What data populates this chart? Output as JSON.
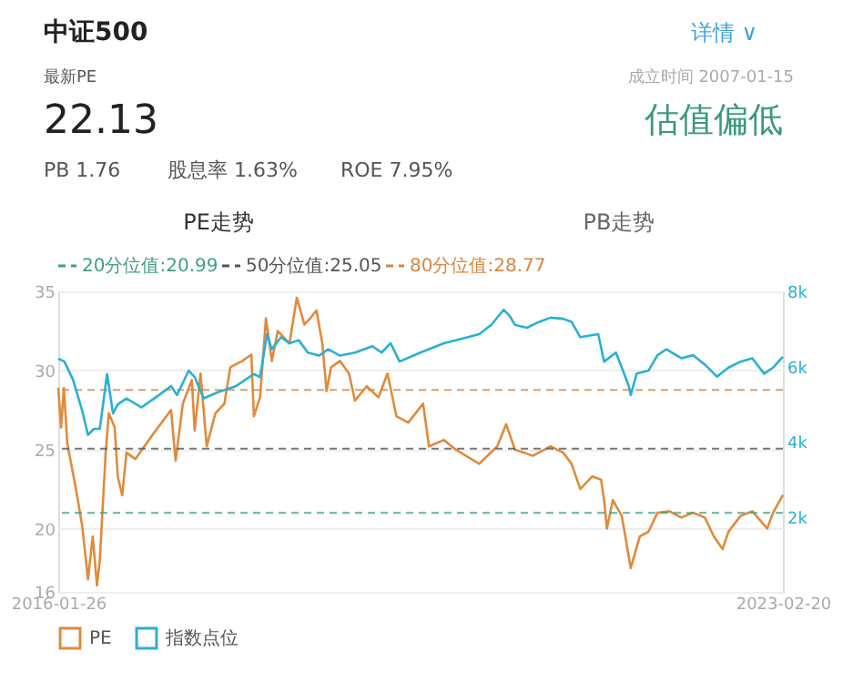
{
  "chart_data": {
    "type": "line",
    "title": "中证500",
    "annotations": [
      "详情 ∨",
      "最新PE",
      "22.13",
      "成立时间 2007-01-15",
      "估值偏低",
      "PB 1.76",
      "股息率 1.63%",
      "ROE 7.95%",
      "PE走势",
      "PB走势"
    ],
    "xlim": [
      "2016-01-26",
      "2023-02-20"
    ],
    "xticks": [
      "2016-01-26",
      "2023-02-20"
    ],
    "ylim": [
      16,
      35
    ],
    "yticks": [
      16,
      20,
      25,
      30,
      35
    ],
    "y2lim": [
      0,
      8000
    ],
    "y2ticks": [
      {
        "value": 2000,
        "label": "2k"
      },
      {
        "value": 4000,
        "label": "4k"
      },
      {
        "value": 6000,
        "label": "6k"
      },
      {
        "value": 8000,
        "label": "8k"
      }
    ],
    "grid": "y",
    "legend": "bottom",
    "ref_lines": [
      {
        "axis": "y",
        "value": 20.99,
        "label": "20分位值:20.99",
        "color": "#3f9f80",
        "line_style": "dashed"
      },
      {
        "axis": "y",
        "value": 25.05,
        "label": "50分位值:25.05",
        "color": "#555555",
        "line_style": "dashed"
      },
      {
        "axis": "y",
        "value": 28.77,
        "label": "80分位值:28.77",
        "color": "#d9843e",
        "line_style": "dashed"
      }
    ],
    "series": [
      {
        "name": "PE",
        "color": "#e08a3c",
        "x": [
          "2016-01-26",
          "2016-02-05",
          "2016-02-15",
          "2016-02-27",
          "2016-03-29",
          "2016-04-20",
          "2016-05-11",
          "2016-05-28",
          "2016-06-12",
          "2016-06-22",
          "2016-07-13",
          "2016-07-24",
          "2016-08-14",
          "2016-08-25",
          "2016-09-10",
          "2016-09-25",
          "2016-10-27",
          "2016-12-30",
          "2017-03-03",
          "2017-03-19",
          "2017-04-14",
          "2017-05-16",
          "2017-05-26",
          "2017-06-16",
          "2017-07-08",
          "2017-08-08",
          "2017-09-09",
          "2017-09-30",
          "2017-11-12",
          "2017-12-14",
          "2017-12-23",
          "2018-01-14",
          "2018-02-04",
          "2018-02-25",
          "2018-03-18",
          "2018-04-29",
          "2018-05-25",
          "2018-06-21",
          "2018-07-12",
          "2018-08-03",
          "2018-08-24",
          "2018-09-08",
          "2018-09-24",
          "2018-10-26",
          "2018-11-27",
          "2018-12-18",
          "2019-01-29",
          "2019-03-12",
          "2019-04-13",
          "2019-05-15",
          "2019-06-26",
          "2019-08-18",
          "2019-09-08",
          "2019-10-31",
          "2019-12-12",
          "2020-03-05",
          "2020-05-08",
          "2020-06-09",
          "2020-07-10",
          "2020-09-12",
          "2020-11-14",
          "2020-12-29",
          "2021-01-28",
          "2021-02-28",
          "2021-04-12",
          "2021-05-13",
          "2021-05-24",
          "2021-06-03",
          "2021-06-24",
          "2021-07-26",
          "2021-08-27",
          "2021-09-28",
          "2021-10-29",
          "2021-11-30",
          "2022-01-11",
          "2022-02-23",
          "2022-04-06",
          "2022-05-18",
          "2022-06-19",
          "2022-07-20",
          "2022-08-10",
          "2022-09-22",
          "2022-11-03",
          "2022-12-26",
          "2023-01-16",
          "2023-02-20"
        ],
        "values": [
          28.9,
          26.4,
          28.9,
          25.4,
          22.5,
          20.2,
          16.8,
          19.5,
          16.4,
          18,
          24.8,
          27.3,
          26.4,
          23.3,
          22.1,
          24.8,
          24.4,
          26,
          27.5,
          24.3,
          27.9,
          29.4,
          26.2,
          29.8,
          25.2,
          27.3,
          27.9,
          30.2,
          30.6,
          31,
          27.1,
          28.3,
          33.3,
          30.6,
          32.5,
          31.7,
          34.6,
          32.9,
          33.3,
          33.8,
          31.7,
          28.7,
          30.2,
          30.6,
          29.8,
          28.1,
          29.0,
          28.3,
          29.8,
          27.1,
          26.7,
          27.9,
          25.2,
          25.6,
          25,
          24.1,
          25.2,
          26.6,
          25,
          24.6,
          25.2,
          24.8,
          24.1,
          22.5,
          23.3,
          23.1,
          21.8,
          20.0,
          21.8,
          20.8,
          17.5,
          19.5,
          19.8,
          21,
          21.1,
          20.7,
          21,
          20.7,
          19.5,
          18.7,
          19.8,
          20.8,
          21.1,
          20.0,
          21,
          22.13
        ]
      },
      {
        "name": "指数点位",
        "color": "#2ab0d4",
        "axis": "y2",
        "x": [
          "2016-01-26",
          "2016-02-17",
          "2016-03-19",
          "2016-04-20",
          "2016-05-11",
          "2016-06-01",
          "2016-06-22",
          "2016-07-18",
          "2016-08-08",
          "2016-08-25",
          "2016-09-25",
          "2016-11-17",
          "2017-01-19",
          "2017-03-03",
          "2017-03-24",
          "2017-05-05",
          "2017-05-26",
          "2017-06-27",
          "2017-08-19",
          "2017-10-21",
          "2017-12-23",
          "2018-01-14",
          "2018-02-08",
          "2018-02-25",
          "2018-03-30",
          "2018-04-29",
          "2018-06-01",
          "2018-07-03",
          "2018-08-13",
          "2018-09-14",
          "2018-10-26",
          "2018-12-18",
          "2019-02-19",
          "2019-03-23",
          "2019-04-24",
          "2019-05-26",
          "2019-08-08",
          "2019-10-31",
          "2020-01-25",
          "2020-03-05",
          "2020-04-17",
          "2020-05-31",
          "2020-06-21",
          "2020-07-10",
          "2020-08-22",
          "2020-10-05",
          "2020-11-14",
          "2020-12-29",
          "2021-01-28",
          "2021-02-28",
          "2021-05-03",
          "2021-05-24",
          "2021-07-05",
          "2021-07-26",
          "2021-08-20",
          "2021-08-27",
          "2021-09-17",
          "2021-10-29",
          "2021-11-30",
          "2022-01-01",
          "2022-02-23",
          "2022-04-06",
          "2022-05-18",
          "2022-06-30",
          "2022-08-10",
          "2022-09-22",
          "2022-11-03",
          "2022-12-15",
          "2023-01-16",
          "2023-02-20"
        ],
        "values": [
          6210,
          6130,
          5640,
          4830,
          4180,
          4340,
          4340,
          5800,
          4750,
          4990,
          5150,
          4910,
          5240,
          5480,
          5240,
          5890,
          5720,
          5150,
          5320,
          5480,
          5800,
          5720,
          6860,
          6460,
          6780,
          6620,
          6700,
          6370,
          6290,
          6460,
          6290,
          6370,
          6540,
          6370,
          6620,
          6130,
          6370,
          6620,
          6780,
          6860,
          7110,
          7510,
          7350,
          7110,
          7030,
          7190,
          7300,
          7270,
          7190,
          6780,
          6860,
          6130,
          6370,
          5970,
          5480,
          5240,
          5810,
          5890,
          6300,
          6460,
          6220,
          6300,
          6050,
          5730,
          5970,
          6130,
          6220,
          5810,
          5970,
          6260
        ]
      }
    ]
  }
}
